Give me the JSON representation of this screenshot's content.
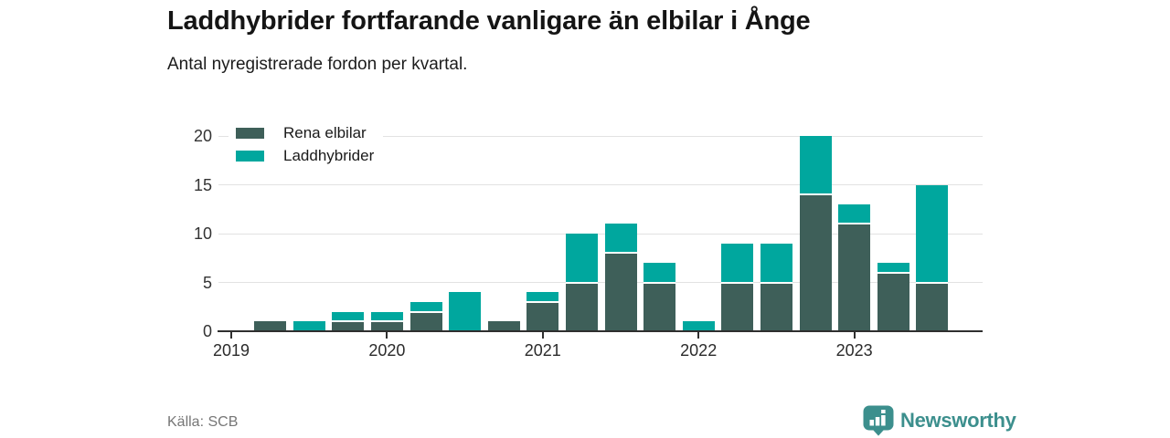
{
  "header": {
    "title": "Laddhybrider fortfarande vanligare än elbilar i Ånge",
    "subtitle": "Antal nyregistrerade fordon per kvartal."
  },
  "legend": {
    "items": [
      {
        "label": "Rena elbilar",
        "color": "#3e5f59"
      },
      {
        "label": "Laddhybrider",
        "color": "#00a79e"
      }
    ]
  },
  "footer": {
    "source": "Källa: SCB",
    "brand": "Newsworthy",
    "brand_color": "#3c8f8d",
    "logo_icon": "bar-chart-speech-bubble-icon"
  },
  "chart_data": {
    "type": "bar",
    "stacked": true,
    "title": "Laddhybrider fortfarande vanligare än elbilar i Ånge",
    "subtitle": "Antal nyregistrerade fordon per kvartal.",
    "xlabel": "",
    "ylabel": "",
    "ylim": [
      0,
      20
    ],
    "yticks": [
      0,
      5,
      10,
      15,
      20
    ],
    "grid": true,
    "legend_position": "top-left",
    "source": "Källa: SCB",
    "categories": [
      "2019 Q1",
      "2019 Q2",
      "2019 Q3",
      "2019 Q4",
      "2020 Q1",
      "2020 Q2",
      "2020 Q3",
      "2020 Q4",
      "2021 Q1",
      "2021 Q2",
      "2021 Q3",
      "2021 Q4",
      "2022 Q1",
      "2022 Q2",
      "2022 Q3",
      "2022 Q4",
      "2023 Q1",
      "2023 Q2",
      "2023 Q3",
      "2023 Q4"
    ],
    "x_year_ticks": [
      {
        "index": 0,
        "label": "2019"
      },
      {
        "index": 4,
        "label": "2020"
      },
      {
        "index": 8,
        "label": "2021"
      },
      {
        "index": 12,
        "label": "2022"
      },
      {
        "index": 16,
        "label": "2023"
      }
    ],
    "series": [
      {
        "name": "Rena elbilar",
        "color": "#3e5f59",
        "values": [
          0,
          1,
          0,
          1,
          1,
          2,
          0,
          1,
          3,
          5,
          8,
          5,
          0,
          5,
          5,
          14,
          11,
          6,
          5,
          0
        ]
      },
      {
        "name": "Laddhybrider",
        "color": "#00a79e",
        "values": [
          0,
          0,
          1,
          1,
          1,
          1,
          4,
          0,
          1,
          5,
          3,
          2,
          1,
          4,
          4,
          6,
          2,
          1,
          10,
          0
        ]
      }
    ]
  }
}
